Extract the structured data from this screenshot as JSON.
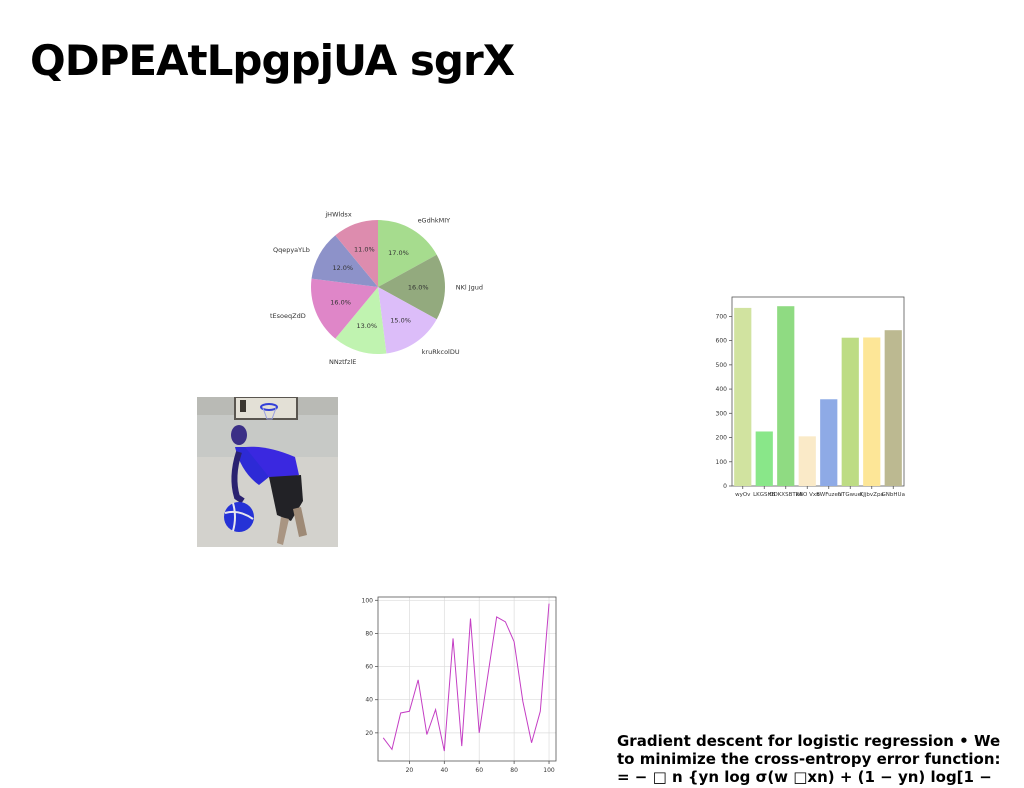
{
  "page": {
    "title": "QDPEAtLpgpjUA sgrX"
  },
  "caption": {
    "lines": [
      "Gradient descent for logistic regression • We",
      "to minimize the cross-entropy error function:",
      "= − □ n {yn log σ(w □xn) + (1 − yn) log[1 −"
    ]
  },
  "photo": {
    "icon": "basketball-player-photo"
  },
  "chart_data": [
    {
      "type": "pie",
      "categories": [
        "eGdhkMIY",
        "NKl Jgud",
        "kruRkcolDU",
        "NNztfzlE",
        "tEsoeqZdD",
        "QqepyaYLb",
        "jHWldsx"
      ],
      "values": [
        17.0,
        16.0,
        15.0,
        13.0,
        16.0,
        12.0,
        11.0
      ],
      "labels": [
        "17.0%",
        "16.0%",
        "15.0%",
        "13.0%",
        "16.0%",
        "12.0%",
        "11.0%"
      ],
      "colors": [
        "#a6dc8e",
        "#93aa7e",
        "#dcbdf9",
        "#c0f3b0",
        "#df86c8",
        "#8d92c9",
        "#dd8cae"
      ],
      "title": ""
    },
    {
      "type": "bar",
      "categories": [
        "wyOv",
        "LKGSHB",
        "ODKXSBTzA",
        "RBO Vxs",
        "BWFuzeu",
        "NTGwuel",
        "KJjbvZpa",
        "GNbHUa"
      ],
      "values": [
        735,
        225,
        742,
        205,
        358,
        612,
        613,
        643
      ],
      "colors": [
        "#d1e3a0",
        "#89e789",
        "#8fdb82",
        "#faeac8",
        "#8eaae6",
        "#bddc84",
        "#fde697",
        "#bcb991"
      ],
      "ylim": [
        0,
        780
      ],
      "yticks": [
        0,
        100,
        200,
        300,
        400,
        500,
        600,
        700
      ],
      "title": "",
      "xlabel": "",
      "ylabel": ""
    },
    {
      "type": "line",
      "x": [
        5,
        10,
        15,
        20,
        25,
        30,
        35,
        40,
        45,
        50,
        55,
        60,
        65,
        70,
        75,
        80,
        85,
        90,
        95,
        100
      ],
      "y": [
        17,
        10,
        32,
        33,
        52,
        19,
        34,
        9,
        77,
        12,
        89,
        20,
        55,
        90,
        87,
        75,
        39,
        14,
        33,
        98
      ],
      "color": "#c43ec4",
      "xlim": [
        2,
        104
      ],
      "ylim": [
        3,
        102
      ],
      "xticks": [
        20,
        40,
        60,
        80,
        100
      ],
      "yticks": [
        20,
        40,
        60,
        80,
        100
      ],
      "grid": true,
      "title": "",
      "xlabel": "",
      "ylabel": ""
    }
  ]
}
